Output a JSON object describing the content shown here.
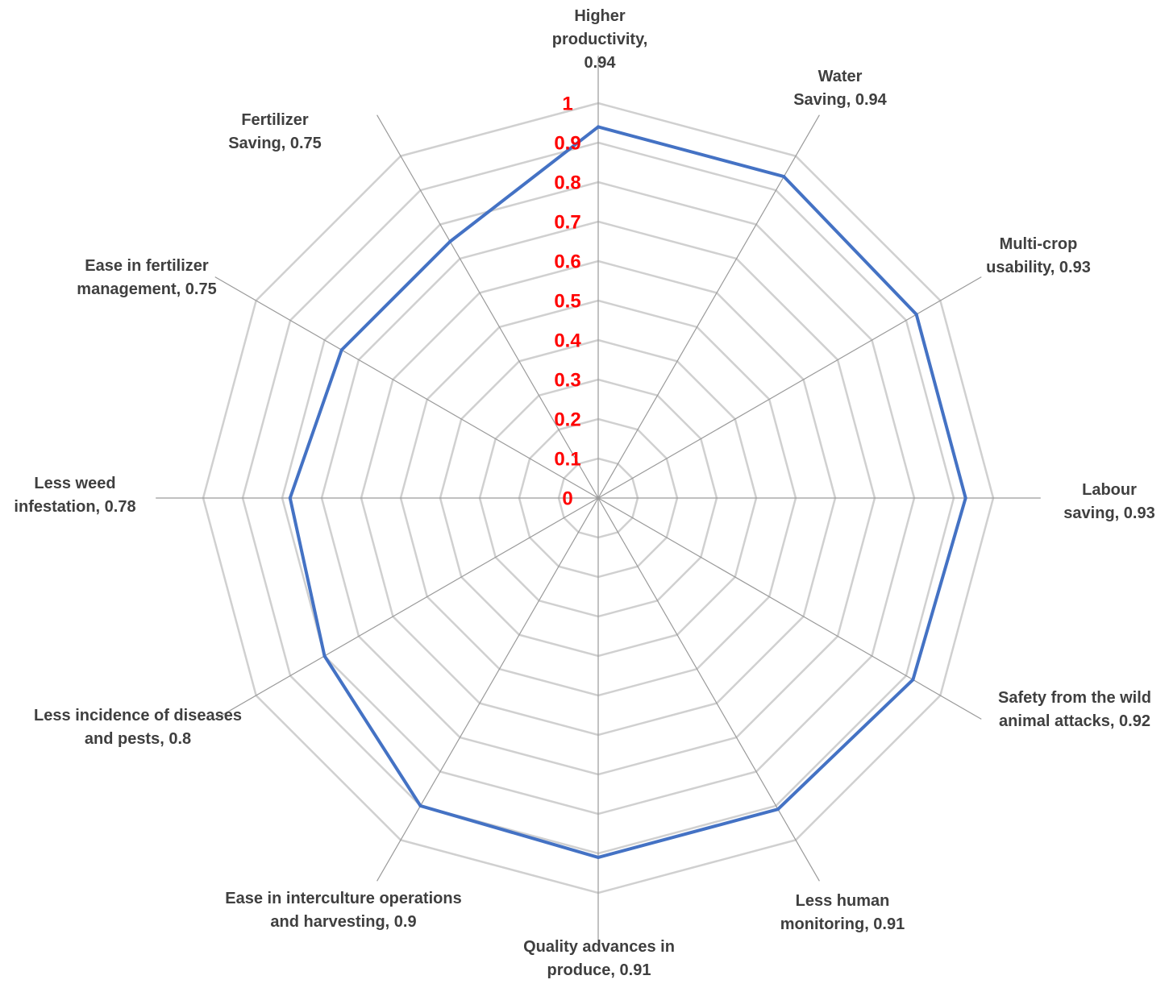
{
  "chart_data": {
    "type": "radar",
    "title": "",
    "r_range": [
      0,
      1
    ],
    "r_ticks": [
      "0",
      "0.1",
      "0.2",
      "0.3",
      "0.4",
      "0.5",
      "0.6",
      "0.7",
      "0.8",
      "0.9",
      "1"
    ],
    "grid": true,
    "categories": [
      "Higher productivity",
      "Water Saving",
      "Multi-crop usability",
      "Labour saving",
      "Safety from the wild animal attacks",
      "Less human monitoring",
      "Quality advances in produce",
      "Ease in interculture operations and harvesting",
      "Less incidence of diseases and pests",
      "Less weed infestation",
      "Ease in fertilizer management",
      "Fertilizer Saving"
    ],
    "series": [
      {
        "values": [
          0.94,
          0.94,
          0.93,
          0.93,
          0.92,
          0.91,
          0.91,
          0.9,
          0.8,
          0.78,
          0.75,
          0.75
        ]
      }
    ],
    "data_labels": [
      [
        "Higher",
        "productivity,",
        "0.94"
      ],
      [
        "Water",
        "Saving, 0.94"
      ],
      [
        "Multi-crop",
        "usability, 0.93"
      ],
      [
        "Labour",
        "saving, 0.93"
      ],
      [
        "Safety from the wild",
        "animal attacks, 0.92"
      ],
      [
        "Less human",
        "monitoring, 0.91"
      ],
      [
        "Quality advances in",
        "produce, 0.91"
      ],
      [
        "Ease in interculture operations",
        "and harvesting, 0.9"
      ],
      [
        "Less incidence of diseases",
        "and pests, 0.8"
      ],
      [
        "Less weed",
        "infestation, 0.78"
      ],
      [
        "Ease in fertilizer",
        "management, 0.75"
      ],
      [
        "Fertilizer",
        "Saving, 0.75"
      ]
    ],
    "colors": {
      "series": "#4472c4",
      "tick_labels": "#ff0000",
      "grid": "#d0d0d0",
      "labels": "#3f3f3f"
    }
  }
}
